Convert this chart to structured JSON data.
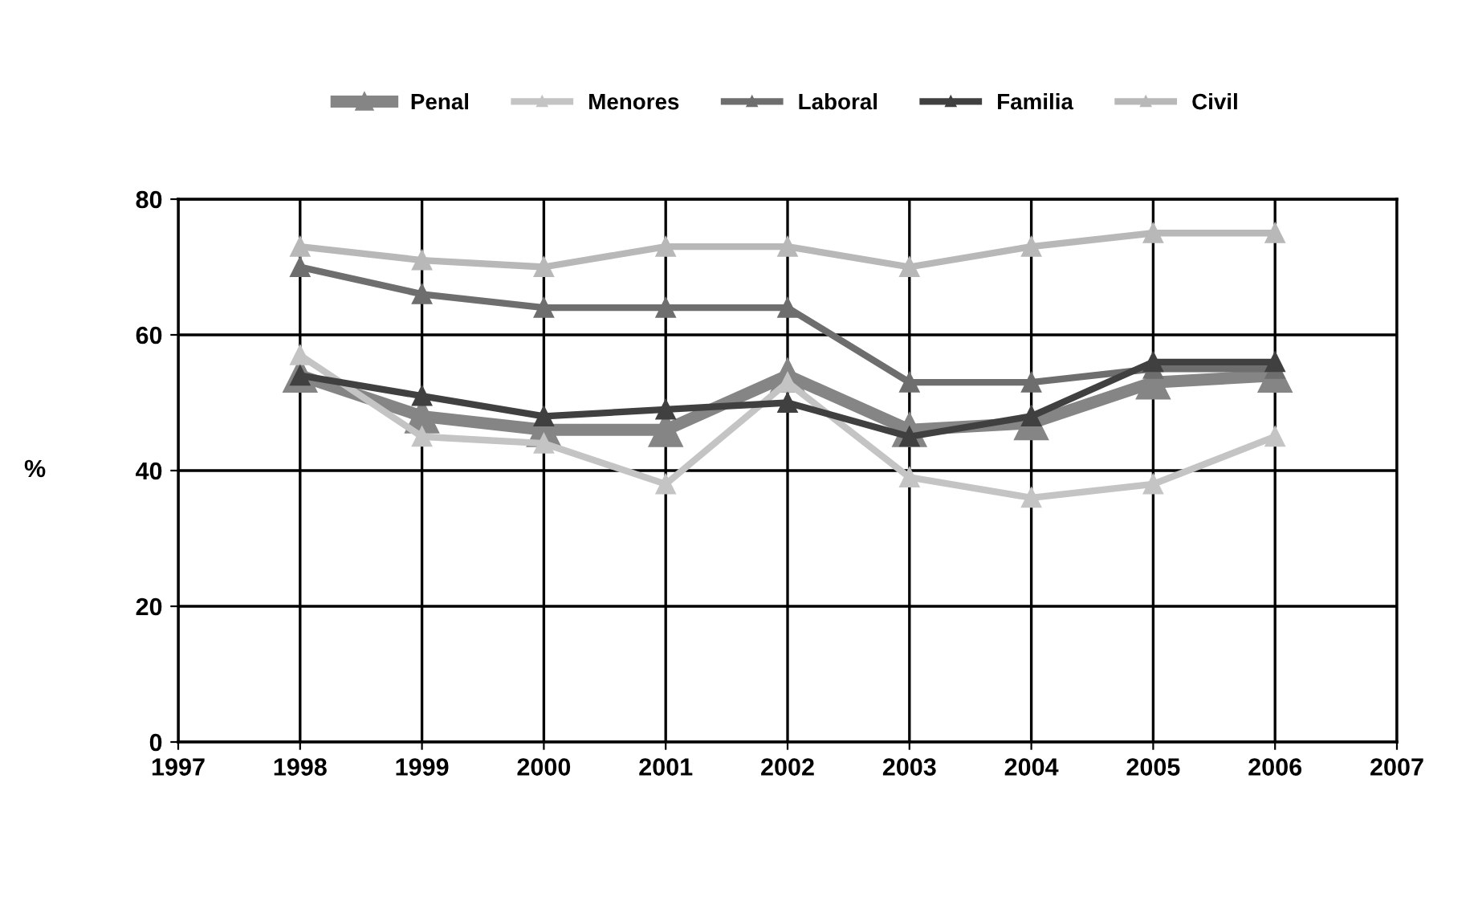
{
  "chart_data": {
    "type": "line",
    "ylabel": "%",
    "x": [
      1998,
      1999,
      2000,
      2001,
      2002,
      2003,
      2004,
      2005,
      2006
    ],
    "xlim": [
      1997,
      2007
    ],
    "xticks": [
      1997,
      1998,
      1999,
      2000,
      2001,
      2002,
      2003,
      2004,
      2005,
      2006,
      2007
    ],
    "ylim": [
      0,
      80
    ],
    "yticks": [
      0,
      20,
      40,
      60,
      80
    ],
    "grid": true,
    "legend": "top",
    "marker": "triangle",
    "line_style": "solid",
    "series": [
      {
        "name": "Penal",
        "color": "#858585",
        "values": [
          54,
          48,
          46,
          46,
          54,
          46,
          47,
          53,
          54
        ]
      },
      {
        "name": "Menores",
        "color": "#c4c4c4",
        "values": [
          57,
          45,
          44,
          38,
          53,
          39,
          36,
          38,
          45
        ]
      },
      {
        "name": "Laboral",
        "color": "#6e6e6e",
        "values": [
          70,
          66,
          64,
          64,
          64,
          53,
          53,
          55,
          55
        ]
      },
      {
        "name": "Familia",
        "color": "#404040",
        "values": [
          54,
          51,
          48,
          49,
          50,
          45,
          48,
          56,
          56
        ]
      },
      {
        "name": "Civil",
        "color": "#b8b8b8",
        "values": [
          73,
          71,
          70,
          73,
          73,
          70,
          73,
          75,
          75
        ]
      }
    ]
  }
}
